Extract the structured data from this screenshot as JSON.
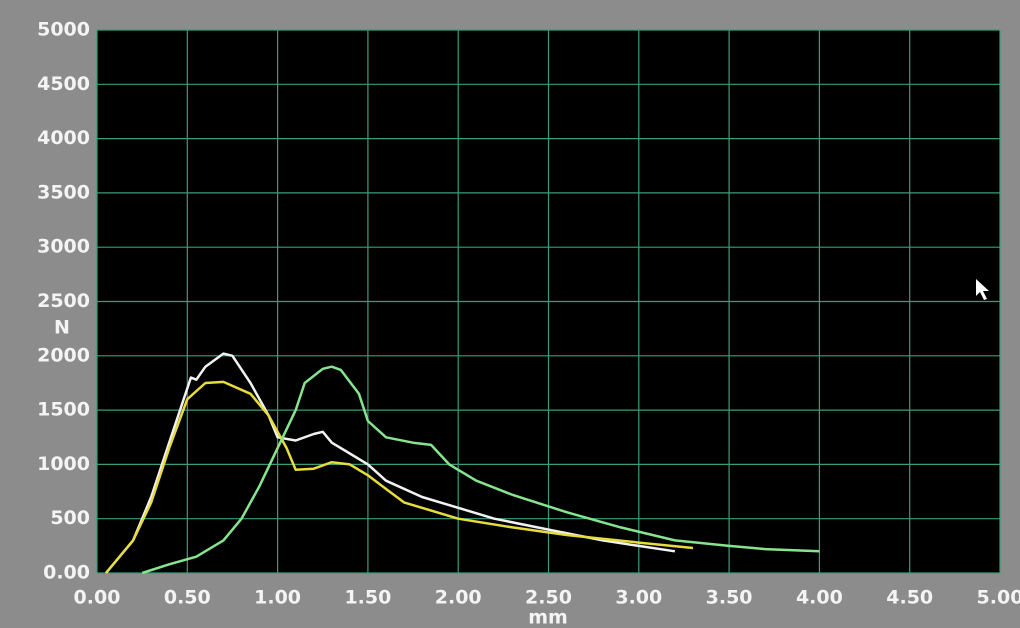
{
  "chart_data": {
    "type": "line",
    "x_label": "mm",
    "y_label": "N",
    "xlim": [
      0,
      5
    ],
    "ylim": [
      0,
      5000
    ],
    "xticks": [
      {
        "value": 0,
        "label": "0.00"
      },
      {
        "value": 0.5,
        "label": "0.50"
      },
      {
        "value": 1,
        "label": "1.00"
      },
      {
        "value": 1.5,
        "label": "1.50"
      },
      {
        "value": 2,
        "label": "2.00"
      },
      {
        "value": 2.5,
        "label": "2.50"
      },
      {
        "value": 3,
        "label": "3.00"
      },
      {
        "value": 3.5,
        "label": "3.50"
      },
      {
        "value": 4,
        "label": "4.00"
      },
      {
        "value": 4.5,
        "label": "4.50"
      },
      {
        "value": 5,
        "label": "5.00"
      }
    ],
    "yticks": [
      {
        "value": 0,
        "label": "0.00"
      },
      500,
      1000,
      1500,
      2000,
      2500,
      3000,
      3500,
      4000,
      4500,
      5000
    ],
    "grid": true,
    "series": [
      {
        "color": "#f2f2f2",
        "x": [
          0.05,
          0.2,
          0.3,
          0.4,
          0.5,
          0.52,
          0.55,
          0.6,
          0.7,
          0.75,
          0.85,
          0.95,
          1.0,
          1.1,
          1.2,
          1.25,
          1.3,
          1.4,
          1.5,
          1.6,
          1.8,
          2.0,
          2.2,
          2.5,
          2.8,
          3.0,
          3.2
        ],
        "values": [
          0,
          300,
          700,
          1200,
          1700,
          1800,
          1780,
          1900,
          2020,
          2000,
          1750,
          1450,
          1250,
          1220,
          1280,
          1300,
          1200,
          1100,
          1000,
          850,
          700,
          600,
          500,
          400,
          300,
          250,
          200
        ]
      },
      {
        "color": "#e6dc3c",
        "x": [
          0.05,
          0.2,
          0.3,
          0.4,
          0.5,
          0.6,
          0.7,
          0.85,
          0.95,
          1.05,
          1.1,
          1.2,
          1.3,
          1.4,
          1.5,
          1.7,
          2.0,
          2.3,
          2.6,
          3.0,
          3.3
        ],
        "values": [
          0,
          300,
          650,
          1150,
          1600,
          1750,
          1760,
          1650,
          1450,
          1150,
          950,
          960,
          1020,
          1000,
          900,
          650,
          500,
          420,
          350,
          280,
          230
        ]
      },
      {
        "color": "#86e48e",
        "x": [
          0.25,
          0.4,
          0.55,
          0.7,
          0.8,
          0.9,
          1.0,
          1.1,
          1.15,
          1.25,
          1.3,
          1.35,
          1.45,
          1.5,
          1.6,
          1.75,
          1.85,
          1.95,
          2.1,
          2.3,
          2.6,
          2.9,
          3.2,
          3.5,
          3.7,
          4.0
        ],
        "values": [
          0,
          80,
          150,
          300,
          500,
          800,
          1150,
          1500,
          1750,
          1880,
          1900,
          1870,
          1650,
          1400,
          1250,
          1200,
          1180,
          1000,
          850,
          720,
          560,
          420,
          300,
          250,
          220,
          200
        ]
      }
    ]
  }
}
